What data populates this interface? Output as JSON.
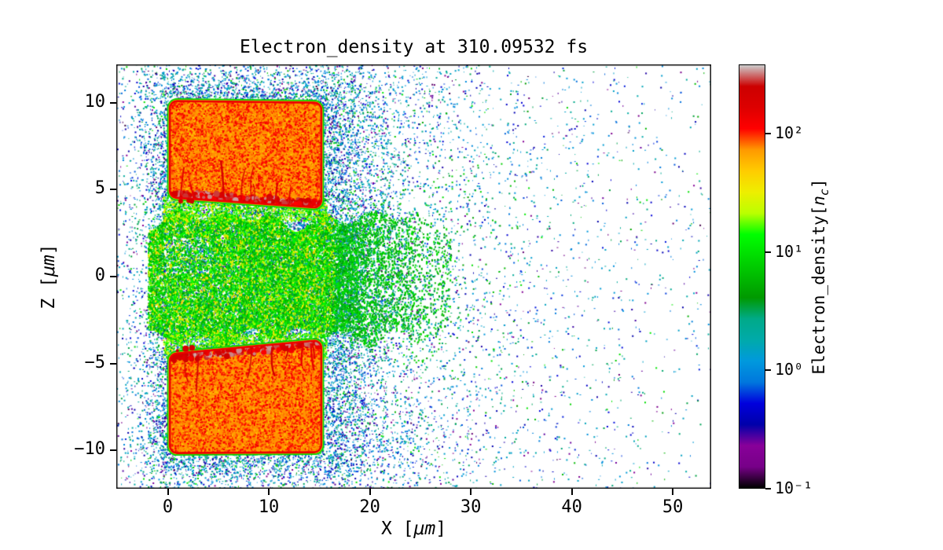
{
  "chart_data": {
    "type": "heatmap",
    "title": "Electron_density at 310.09532 fs",
    "time_label": "310.09532 fs",
    "xlabel": {
      "prefix": "X [",
      "math": "μm",
      "suffix": "]"
    },
    "ylabel": {
      "prefix": "Z [",
      "math": "μm",
      "suffix": "]"
    },
    "xlim": [
      -5.1,
      53.8
    ],
    "ylim": [
      -12.2,
      12.2
    ],
    "x_ticks": [
      0,
      10,
      20,
      30,
      40,
      50
    ],
    "y_ticks": [
      -10,
      -5,
      0,
      5,
      10
    ],
    "grid": false,
    "scale": "log",
    "vmin": 0.1,
    "vmax": 385,
    "colormap": {
      "name": "nipy_spectral",
      "stops": [
        [
          0.0,
          "#000000"
        ],
        [
          0.05,
          "#770088"
        ],
        [
          0.1,
          "#880099"
        ],
        [
          0.15,
          "#0000aa"
        ],
        [
          0.2,
          "#0000dd"
        ],
        [
          0.25,
          "#0077dd"
        ],
        [
          0.3,
          "#0099dd"
        ],
        [
          0.35,
          "#00aaaa"
        ],
        [
          0.4,
          "#00aa88"
        ],
        [
          0.45,
          "#009900"
        ],
        [
          0.5,
          "#00bb00"
        ],
        [
          0.55,
          "#00dd00"
        ],
        [
          0.6,
          "#00ff00"
        ],
        [
          0.65,
          "#bbff00"
        ],
        [
          0.7,
          "#eeee00"
        ],
        [
          0.75,
          "#ffcc00"
        ],
        [
          0.8,
          "#ff9900"
        ],
        [
          0.85,
          "#ff0000"
        ],
        [
          0.9,
          "#dd0000"
        ],
        [
          0.95,
          "#cc0000"
        ],
        [
          1.0,
          "#cccccc"
        ]
      ]
    },
    "colorbar": {
      "label": {
        "prefix": "Electron_density[",
        "math": "n",
        "sub": "c",
        "suffix": "]"
      },
      "ticks": [
        {
          "value": 100,
          "label": "10²"
        },
        {
          "value": 10,
          "label": "10¹"
        },
        {
          "value": 1,
          "label": "10⁰"
        },
        {
          "value": 0.1,
          "label": "10⁻¹"
        }
      ]
    },
    "features": {
      "upper_target": {
        "corners": [
          [
            0.2,
            10.1
          ],
          [
            15.2,
            10.0
          ],
          [
            15.2,
            3.95
          ],
          [
            0.2,
            4.55
          ]
        ],
        "fill_value": 75,
        "edge_value": 140,
        "band_edge": "bottom"
      },
      "lower_target": {
        "corners": [
          [
            0.2,
            -4.45
          ],
          [
            15.2,
            -3.65
          ],
          [
            15.2,
            -10.1
          ],
          [
            0.2,
            -10.15
          ]
        ],
        "fill_value": 75,
        "edge_value": 140,
        "band_edge": "top"
      },
      "plasma_channel": {
        "x": [
          -2,
          28
        ],
        "z": [
          -3.6,
          3.6
        ],
        "value_range": [
          2.5,
          55
        ]
      },
      "noise_cloud": {
        "x": [
          -5.1,
          53.8
        ],
        "z": [
          -12.2,
          12.2
        ],
        "value_range": [
          0.12,
          11
        ]
      }
    }
  }
}
